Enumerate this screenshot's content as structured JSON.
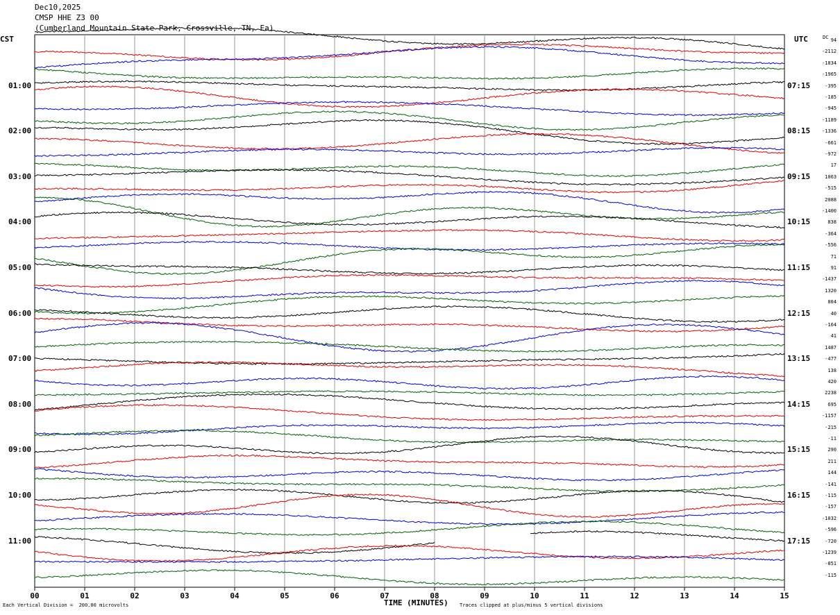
{
  "header": {
    "date": "Dec10,2025",
    "station": "CMSP HHE Z3 00",
    "location": "(Cumberland Mountain State Park, Crossville, TN, Ea)"
  },
  "left_zone_label": "CST",
  "right_zone_label": "UTC",
  "dc_label": "DC",
  "xlabel": "TIME (MINUTES)",
  "footer_left": "Each Vertical Division =  200.00 microvolts",
  "footer_right": "Traces clipped at plus/minus 5 vertical divisions",
  "colors": {
    "cycle": [
      "#000000",
      "#e00000",
      "#0000d0",
      "#006000"
    ]
  },
  "chart_data": {
    "type": "line",
    "title": "CMSP HHE Z3 00",
    "xlabel": "TIME (MINUTES)",
    "xlim": [
      0,
      15
    ],
    "x_ticks": [
      "00",
      "01",
      "02",
      "03",
      "04",
      "05",
      "06",
      "07",
      "08",
      "09",
      "10",
      "11",
      "12",
      "13",
      "14",
      "15"
    ],
    "trace_minutes": 15,
    "trace_count": 48,
    "gap_trace_index": 44,
    "gap_minutes": [
      8.0,
      9.9
    ],
    "left_time_labels": [
      "01:00",
      "02:00",
      "03:00",
      "04:00",
      "05:00",
      "06:00",
      "07:00",
      "08:00",
      "09:00",
      "10:00",
      "11:00"
    ],
    "right_time_labels": [
      "07:15",
      "08:15",
      "09:15",
      "10:15",
      "11:15",
      "12:15",
      "13:15",
      "14:15",
      "15:15",
      "16:15",
      "17:15"
    ],
    "dc_offsets": [
      "94",
      "-2112",
      "-1834",
      "-1965",
      "-395",
      "-185",
      "-945",
      "-1189",
      "-1336",
      "-661",
      "-972",
      "17",
      "1063",
      "-515",
      "2088",
      "-1400",
      "838",
      "-364",
      "-556",
      "71",
      "91",
      "-1437",
      "1320",
      "804",
      "40",
      "-164",
      "41",
      "1487",
      "-477",
      "138",
      "420",
      "2238",
      "695",
      "-1157",
      "-215",
      "-11",
      "290",
      "211",
      "144",
      "-141",
      "-115",
      "-157",
      "-1032",
      "-596",
      "-720",
      "-1239",
      "-851",
      "-115"
    ]
  }
}
